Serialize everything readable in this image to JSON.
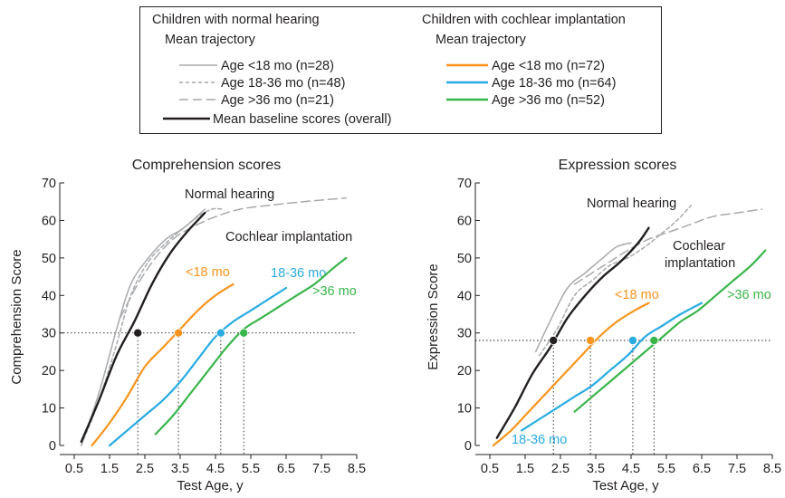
{
  "legend": {
    "normal_heading": "Children with normal hearing",
    "normal_sub": "Mean trajectory",
    "normal_items": [
      "Age <18 mo (n=28)",
      "Age 18-36 mo (n=48)",
      "Age >36 mo (n=21)"
    ],
    "baseline_label": "Mean baseline scores (overall)",
    "ci_heading": "Children with cochlear implantation",
    "ci_sub": "Mean trajectory",
    "ci_items": [
      "Age <18 mo (n=72)",
      "Age 18-36 mo (n=64)",
      "Age >36 mo (n=52)"
    ]
  },
  "colors": {
    "ink": "#231f20",
    "normal_gray": "#a7a9ac",
    "ci_lt18": "#f7941d",
    "ci_18_36": "#29abe2",
    "ci_gt36": "#39b54a"
  },
  "chart_data": [
    {
      "type": "line",
      "title": "Comprehension scores",
      "xlabel": "Test Age, y",
      "ylabel": "Comprehension Score",
      "xlim": [
        0.5,
        8.5
      ],
      "ylim": [
        0,
        70
      ],
      "xticks": [
        "0.5",
        "1.5",
        "2.5",
        "3.5",
        "4.5",
        "5.5",
        "6.5",
        "7.5",
        "8.5"
      ],
      "yticks": [
        "0",
        "10",
        "20",
        "30",
        "40",
        "50",
        "60",
        "70"
      ],
      "reference_y": 30,
      "annotations": {
        "normal": "Normal hearing",
        "ci": "Cochlear implantation",
        "lt18": "<18 mo",
        "mid": "18-36 mo",
        "gt36": ">36 mo"
      },
      "series": [
        {
          "name": "Age <18 mo (n=28)",
          "group": "normal",
          "style": "solid",
          "x": [
            0.7,
            1.2,
            1.7,
            2.1,
            2.6,
            3.1,
            3.6,
            4.2
          ],
          "y": [
            0,
            14,
            31,
            43,
            50,
            55,
            58,
            63
          ]
        },
        {
          "name": "Age 18-36 mo (n=48)",
          "group": "normal",
          "style": "short-dash",
          "x": [
            0.7,
            1.2,
            1.7,
            2.1,
            2.6,
            3.1,
            3.6,
            4.0,
            4.4,
            4.7
          ],
          "y": [
            0,
            12,
            27,
            40,
            49,
            54,
            58,
            61,
            63,
            63
          ]
        },
        {
          "name": "Age >36 mo (n=21)",
          "group": "normal",
          "style": "long-dash",
          "x": [
            1.8,
            2.3,
            2.8,
            3.3,
            3.8,
            4.5,
            5.2,
            6.0,
            7.0,
            8.2
          ],
          "y": [
            34,
            43,
            50,
            55,
            58,
            61,
            63,
            64,
            65,
            66
          ]
        },
        {
          "name": "Mean baseline scores (overall)",
          "group": "baseline",
          "style": "solid",
          "x": [
            0.7,
            1.2,
            1.7,
            2.2,
            2.7,
            3.2,
            3.7,
            4.2
          ],
          "y": [
            1,
            12,
            24,
            33,
            43,
            51,
            57,
            62
          ]
        },
        {
          "name": "Age <18 mo (n=72)",
          "group": "ci",
          "style": "solid",
          "x": [
            1.0,
            1.5,
            2.0,
            2.5,
            3.0,
            3.5,
            4.0,
            4.5,
            5.0
          ],
          "y": [
            0,
            6,
            13,
            21,
            26,
            31,
            36,
            40,
            43
          ]
        },
        {
          "name": "Age 18-36 mo (n=64)",
          "group": "ci",
          "style": "solid",
          "x": [
            1.5,
            2.0,
            2.5,
            3.0,
            3.5,
            4.0,
            4.5,
            5.0,
            5.5,
            6.0,
            6.5
          ],
          "y": [
            0,
            4,
            8,
            12,
            17,
            23,
            29,
            33,
            36,
            39,
            42
          ]
        },
        {
          "name": "Age >36 mo (n=52)",
          "group": "ci",
          "style": "solid",
          "x": [
            2.8,
            3.3,
            3.8,
            4.3,
            4.8,
            5.3,
            5.8,
            6.3,
            6.8,
            7.3,
            7.8,
            8.2
          ],
          "y": [
            3,
            8,
            14,
            20,
            26,
            31,
            34,
            37,
            40,
            43,
            47,
            50
          ]
        }
      ],
      "markers": [
        {
          "series": "Mean baseline scores (overall)",
          "x": 2.3,
          "y": 30
        },
        {
          "series": "Age <18 mo (n=72)",
          "x": 3.45,
          "y": 30
        },
        {
          "series": "Age 18-36 mo (n=64)",
          "x": 4.65,
          "y": 30
        },
        {
          "series": "Age >36 mo (n=52)",
          "x": 5.3,
          "y": 30
        }
      ]
    },
    {
      "type": "line",
      "title": "Expression scores",
      "xlabel": "Test Age, y",
      "ylabel": "Expression Score",
      "xlim": [
        0.5,
        8.5
      ],
      "ylim": [
        0,
        70
      ],
      "xticks": [
        "0.5",
        "1.5",
        "2.5",
        "3.5",
        "4.5",
        "5.5",
        "6.5",
        "7.5",
        "8.5"
      ],
      "yticks": [
        "0",
        "10",
        "20",
        "30",
        "40",
        "50",
        "60",
        "70"
      ],
      "reference_y": 28,
      "annotations": {
        "normal": "Normal hearing",
        "ci_line1": "Cochlear",
        "ci_line2": "implantation",
        "lt18": "<18 mo",
        "mid": "18-36 mo",
        "gt36": ">36 mo"
      },
      "series": [
        {
          "name": "Age <18 mo (n=28)",
          "group": "normal",
          "style": "solid",
          "x": [
            1.8,
            2.2,
            2.7,
            3.2,
            3.7,
            4.1,
            4.5
          ],
          "y": [
            25,
            33,
            42,
            46,
            50,
            53,
            54
          ]
        },
        {
          "name": "Age 18-36 mo (n=48)",
          "group": "normal",
          "style": "short-dash",
          "x": [
            1.9,
            2.4,
            2.9,
            3.4,
            3.9,
            4.4,
            4.9,
            5.3,
            5.8,
            6.2
          ],
          "y": [
            24,
            31,
            40,
            44,
            48,
            50,
            53,
            56,
            60,
            64
          ]
        },
        {
          "name": "Age >36 mo (n=21)",
          "group": "normal",
          "style": "long-dash",
          "x": [
            2.9,
            3.4,
            3.9,
            4.4,
            5.0,
            5.6,
            6.2,
            6.8,
            7.5,
            8.2
          ],
          "y": [
            43,
            46,
            49,
            52,
            55,
            57,
            59,
            61,
            62,
            63
          ]
        },
        {
          "name": "Mean baseline scores (overall)",
          "group": "baseline",
          "style": "solid",
          "x": [
            0.7,
            1.2,
            1.7,
            2.2,
            2.7,
            3.2,
            3.7,
            4.2,
            4.7,
            5.0
          ],
          "y": [
            2,
            10,
            19,
            26,
            34,
            40,
            45,
            49,
            54,
            58
          ]
        },
        {
          "name": "Age <18 mo (n=72)",
          "group": "ci",
          "style": "solid",
          "x": [
            0.6,
            1.1,
            1.6,
            2.1,
            2.6,
            3.1,
            3.6,
            4.1,
            4.6,
            5.0
          ],
          "y": [
            0,
            4,
            9,
            14,
            19,
            24,
            29,
            33,
            36,
            38
          ]
        },
        {
          "name": "Age 18-36 mo (n=64)",
          "group": "ci",
          "style": "solid",
          "x": [
            1.4,
            1.9,
            2.4,
            2.9,
            3.4,
            3.9,
            4.4,
            4.9,
            5.4,
            5.9,
            6.5
          ],
          "y": [
            4,
            7,
            10,
            13,
            16,
            20,
            24,
            29,
            32,
            35,
            38
          ]
        },
        {
          "name": "Age >36 mo (n=52)",
          "group": "ci",
          "style": "solid",
          "x": [
            2.9,
            3.4,
            3.9,
            4.4,
            4.9,
            5.4,
            5.9,
            6.4,
            6.9,
            7.4,
            7.9,
            8.3
          ],
          "y": [
            9,
            13,
            17,
            21,
            25,
            29,
            33,
            36,
            40,
            44,
            48,
            52
          ]
        }
      ],
      "markers": [
        {
          "series": "Mean baseline scores (overall)",
          "x": 2.3,
          "y": 28
        },
        {
          "series": "Age <18 mo (n=72)",
          "x": 3.35,
          "y": 28
        },
        {
          "series": "Age 18-36 mo (n=64)",
          "x": 4.55,
          "y": 28
        },
        {
          "series": "Age >36 mo (n=52)",
          "x": 5.15,
          "y": 28
        }
      ]
    }
  ]
}
